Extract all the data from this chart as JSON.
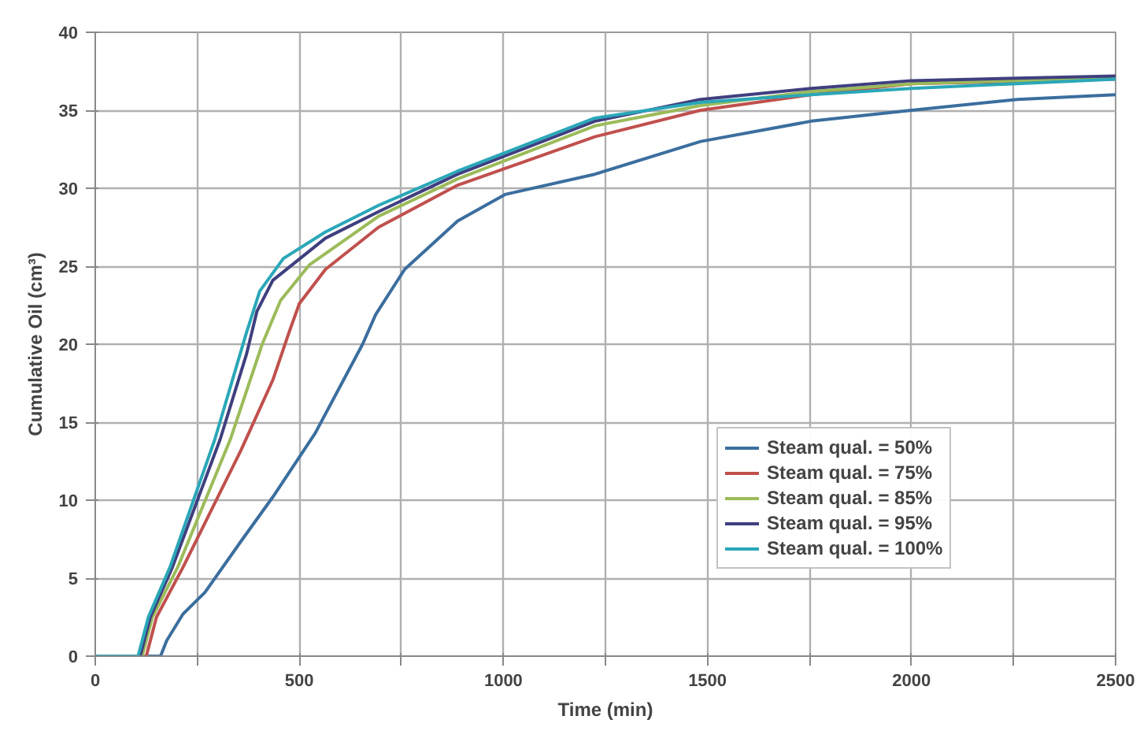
{
  "chart_data": {
    "type": "line",
    "xlabel": "Time (min)",
    "ylabel": "Cumulative Oil (cm³)",
    "xlim": [
      0,
      2500
    ],
    "ylim": [
      0,
      40
    ],
    "xticks": [
      0,
      {
        "value": 250,
        "label": null
      },
      500,
      {
        "value": 750,
        "label": null
      },
      1000,
      {
        "value": 1250,
        "label": null
      },
      1500,
      {
        "value": 1750,
        "label": null
      },
      2000,
      {
        "value": 2250,
        "label": null
      },
      2500
    ],
    "yticks": [
      0,
      5,
      10,
      15,
      20,
      25,
      30,
      35,
      40
    ],
    "grid": true,
    "legend": "right",
    "line_style": "solid",
    "series": [
      {
        "name": "Steam qual. = 50%",
        "color": "#3b6e9e",
        "x": [
          0,
          160,
          175,
          215,
          269,
          358,
          435,
          539,
          655,
          687,
          758,
          888,
          1004,
          1224,
          1483,
          1754,
          2000,
          2259,
          2500
        ],
        "values": [
          0,
          0,
          1,
          2.7,
          4.1,
          7.4,
          10.2,
          14.3,
          20,
          21.9,
          24.8,
          27.9,
          29.6,
          30.9,
          33,
          34.3,
          35,
          35.7,
          36
        ]
      },
      {
        "name": "Steam qual. = 75%",
        "color": "#c0504d",
        "x": [
          0,
          125,
          150,
          215,
          357,
          435,
          474,
          500,
          564,
          694,
          888,
          1224,
          1483,
          1754,
          2000,
          2500
        ],
        "values": [
          0,
          0,
          2.5,
          5.7,
          13.2,
          17.7,
          20.7,
          22.6,
          24.8,
          27.5,
          30.2,
          33.3,
          35,
          36,
          36.7,
          37
        ]
      },
      {
        "name": "Steam qual. = 85%",
        "color": "#9bbb59",
        "x": [
          0,
          115,
          140,
          202,
          331,
          409,
          454,
          525,
          694,
          888,
          1224,
          1483,
          1754,
          2000,
          2500
        ],
        "values": [
          0,
          0,
          2.5,
          5.7,
          13.9,
          20,
          22.8,
          25.1,
          28.2,
          30.6,
          34,
          35.3,
          36.2,
          36.7,
          37.1
        ]
      },
      {
        "name": "Steam qual. = 95%",
        "color": "#3f3f7f",
        "x": [
          0,
          110,
          135,
          189,
          306,
          371,
          396,
          435,
          564,
          694,
          888,
          1224,
          1483,
          1754,
          2000,
          2500
        ],
        "values": [
          0,
          0,
          2.5,
          5.7,
          13.9,
          19.4,
          22.1,
          24.1,
          26.8,
          28.5,
          30.9,
          34.3,
          35.7,
          36.4,
          36.9,
          37.2
        ]
      },
      {
        "name": "Steam qual. = 100%",
        "color": "#2aa7b8",
        "x": [
          0,
          105,
          130,
          183,
          293,
          370,
          403,
          461,
          564,
          694,
          888,
          1224,
          1483,
          1754,
          2000,
          2500
        ],
        "values": [
          0,
          0,
          2.5,
          5.7,
          13.9,
          20.7,
          23.4,
          25.5,
          27.2,
          28.9,
          31.1,
          34.5,
          35.5,
          36,
          36.4,
          37
        ]
      }
    ]
  }
}
